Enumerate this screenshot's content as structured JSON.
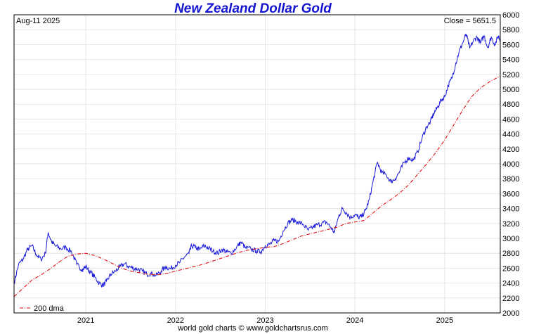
{
  "chart_data": {
    "type": "line",
    "title": "New Zealand Dollar Gold",
    "date_label": "Aug-11  2025",
    "close_label": "Close = 5651.5",
    "credit": "world gold charts © www.goldchartsrus.com",
    "ylim": [
      2000,
      6000
    ],
    "y_ticks": [
      2000,
      2200,
      2400,
      2600,
      2800,
      3000,
      3200,
      3400,
      3600,
      3800,
      4000,
      4200,
      4400,
      4600,
      4800,
      5000,
      5200,
      5400,
      5600,
      5800,
      6000
    ],
    "x_start": 2020.2,
    "x_end": 2025.62,
    "x_ticks": [
      {
        "label": "2021",
        "value": 2021.0
      },
      {
        "label": "2022",
        "value": 2022.0
      },
      {
        "label": "2023",
        "value": 2023.0
      },
      {
        "label": "2024",
        "value": 2024.0
      },
      {
        "label": "2025",
        "value": 2025.0
      }
    ],
    "grid": true,
    "legend": {
      "label": "200 dma",
      "placement": "bottom-left"
    },
    "series": [
      {
        "name": "",
        "color": "#1a1ad8",
        "style": "solid",
        "points": [
          [
            2020.2,
            2400
          ],
          [
            2020.25,
            2650
          ],
          [
            2020.3,
            2720
          ],
          [
            2020.35,
            2850
          ],
          [
            2020.4,
            2900
          ],
          [
            2020.45,
            2780
          ],
          [
            2020.5,
            2720
          ],
          [
            2020.55,
            2800
          ],
          [
            2020.58,
            3080
          ],
          [
            2020.62,
            2950
          ],
          [
            2020.66,
            2900
          ],
          [
            2020.72,
            2860
          ],
          [
            2020.78,
            2880
          ],
          [
            2020.84,
            2820
          ],
          [
            2020.9,
            2650
          ],
          [
            2020.96,
            2580
          ],
          [
            2021.0,
            2620
          ],
          [
            2021.05,
            2550
          ],
          [
            2021.1,
            2480
          ],
          [
            2021.15,
            2400
          ],
          [
            2021.19,
            2370
          ],
          [
            2021.23,
            2420
          ],
          [
            2021.28,
            2520
          ],
          [
            2021.33,
            2560
          ],
          [
            2021.38,
            2620
          ],
          [
            2021.43,
            2660
          ],
          [
            2021.48,
            2620
          ],
          [
            2021.53,
            2600
          ],
          [
            2021.58,
            2590
          ],
          [
            2021.63,
            2560
          ],
          [
            2021.68,
            2520
          ],
          [
            2021.73,
            2530
          ],
          [
            2021.78,
            2500
          ],
          [
            2021.84,
            2560
          ],
          [
            2021.89,
            2620
          ],
          [
            2021.94,
            2590
          ],
          [
            2022.0,
            2640
          ],
          [
            2022.05,
            2680
          ],
          [
            2022.1,
            2750
          ],
          [
            2022.15,
            2800
          ],
          [
            2022.18,
            2900
          ],
          [
            2022.22,
            2880
          ],
          [
            2022.27,
            2850
          ],
          [
            2022.32,
            2900
          ],
          [
            2022.37,
            2870
          ],
          [
            2022.42,
            2830
          ],
          [
            2022.47,
            2800
          ],
          [
            2022.52,
            2850
          ],
          [
            2022.57,
            2820
          ],
          [
            2022.62,
            2800
          ],
          [
            2022.68,
            2880
          ],
          [
            2022.73,
            2950
          ],
          [
            2022.78,
            2870
          ],
          [
            2022.84,
            2860
          ],
          [
            2022.9,
            2830
          ],
          [
            2022.95,
            2820
          ],
          [
            2023.0,
            2900
          ],
          [
            2023.05,
            2920
          ],
          [
            2023.1,
            2970
          ],
          [
            2023.15,
            2960
          ],
          [
            2023.2,
            3100
          ],
          [
            2023.25,
            3200
          ],
          [
            2023.3,
            3250
          ],
          [
            2023.36,
            3220
          ],
          [
            2023.42,
            3190
          ],
          [
            2023.48,
            3110
          ],
          [
            2023.53,
            3150
          ],
          [
            2023.58,
            3180
          ],
          [
            2023.63,
            3200
          ],
          [
            2023.68,
            3220
          ],
          [
            2023.73,
            3150
          ],
          [
            2023.77,
            3080
          ],
          [
            2023.82,
            3300
          ],
          [
            2023.86,
            3400
          ],
          [
            2023.9,
            3350
          ],
          [
            2023.95,
            3280
          ],
          [
            2024.0,
            3320
          ],
          [
            2024.04,
            3280
          ],
          [
            2024.08,
            3300
          ],
          [
            2024.12,
            3380
          ],
          [
            2024.16,
            3520
          ],
          [
            2024.2,
            3750
          ],
          [
            2024.25,
            4020
          ],
          [
            2024.3,
            3880
          ],
          [
            2024.35,
            3850
          ],
          [
            2024.4,
            3760
          ],
          [
            2024.45,
            3800
          ],
          [
            2024.5,
            3900
          ],
          [
            2024.55,
            4020
          ],
          [
            2024.6,
            4080
          ],
          [
            2024.65,
            4050
          ],
          [
            2024.7,
            4160
          ],
          [
            2024.75,
            4350
          ],
          [
            2024.8,
            4500
          ],
          [
            2024.84,
            4560
          ],
          [
            2024.88,
            4680
          ],
          [
            2024.92,
            4760
          ],
          [
            2024.96,
            4850
          ],
          [
            2025.0,
            4900
          ],
          [
            2025.04,
            5050
          ],
          [
            2025.08,
            5150
          ],
          [
            2025.12,
            5330
          ],
          [
            2025.16,
            5500
          ],
          [
            2025.2,
            5620
          ],
          [
            2025.24,
            5740
          ],
          [
            2025.28,
            5550
          ],
          [
            2025.32,
            5650
          ],
          [
            2025.36,
            5700
          ],
          [
            2025.4,
            5620
          ],
          [
            2025.44,
            5720
          ],
          [
            2025.48,
            5560
          ],
          [
            2025.52,
            5700
          ],
          [
            2025.56,
            5600
          ],
          [
            2025.6,
            5720
          ],
          [
            2025.62,
            5651
          ]
        ]
      },
      {
        "name": "200 dma",
        "color": "#e01010",
        "style": "dashdot",
        "points": [
          [
            2020.2,
            2220
          ],
          [
            2020.3,
            2330
          ],
          [
            2020.4,
            2440
          ],
          [
            2020.5,
            2510
          ],
          [
            2020.6,
            2590
          ],
          [
            2020.7,
            2680
          ],
          [
            2020.8,
            2760
          ],
          [
            2020.9,
            2790
          ],
          [
            2021.0,
            2800
          ],
          [
            2021.1,
            2770
          ],
          [
            2021.2,
            2720
          ],
          [
            2021.3,
            2660
          ],
          [
            2021.4,
            2600
          ],
          [
            2021.5,
            2560
          ],
          [
            2021.6,
            2540
          ],
          [
            2021.7,
            2520
          ],
          [
            2021.8,
            2510
          ],
          [
            2021.9,
            2530
          ],
          [
            2022.0,
            2560
          ],
          [
            2022.1,
            2590
          ],
          [
            2022.2,
            2620
          ],
          [
            2022.3,
            2650
          ],
          [
            2022.4,
            2690
          ],
          [
            2022.5,
            2730
          ],
          [
            2022.6,
            2770
          ],
          [
            2022.7,
            2810
          ],
          [
            2022.8,
            2840
          ],
          [
            2022.9,
            2860
          ],
          [
            2023.0,
            2880
          ],
          [
            2023.1,
            2890
          ],
          [
            2023.2,
            2930
          ],
          [
            2023.3,
            2980
          ],
          [
            2023.4,
            3030
          ],
          [
            2023.5,
            3060
          ],
          [
            2023.6,
            3090
          ],
          [
            2023.7,
            3120
          ],
          [
            2023.8,
            3150
          ],
          [
            2023.9,
            3200
          ],
          [
            2024.0,
            3220
          ],
          [
            2024.1,
            3240
          ],
          [
            2024.2,
            3340
          ],
          [
            2024.3,
            3440
          ],
          [
            2024.4,
            3520
          ],
          [
            2024.5,
            3610
          ],
          [
            2024.6,
            3720
          ],
          [
            2024.7,
            3860
          ],
          [
            2024.8,
            4000
          ],
          [
            2024.9,
            4150
          ],
          [
            2025.0,
            4320
          ],
          [
            2025.1,
            4520
          ],
          [
            2025.2,
            4720
          ],
          [
            2025.3,
            4900
          ],
          [
            2025.4,
            5020
          ],
          [
            2025.5,
            5100
          ],
          [
            2025.62,
            5180
          ]
        ]
      }
    ]
  }
}
